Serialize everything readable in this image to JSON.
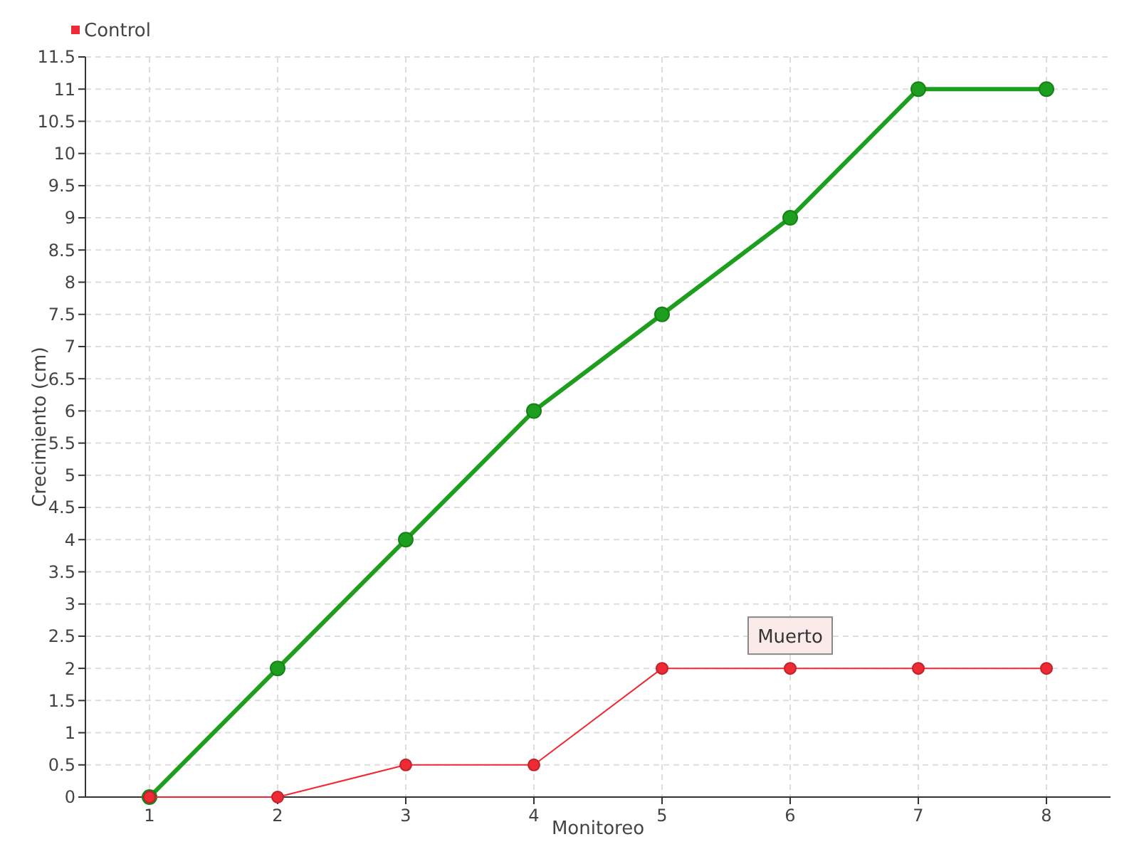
{
  "chart_data": {
    "type": "line",
    "xlabel": "Monitoreo",
    "ylabel": "Crecimiento (cm)",
    "x": [
      1,
      2,
      3,
      4,
      5,
      6,
      7,
      8
    ],
    "series": [
      {
        "color": "#1e9e1e",
        "values": [
          0,
          2,
          4,
          6,
          7.5,
          9,
          11,
          11
        ]
      },
      {
        "name": "Control",
        "color": "#ee2a35",
        "values": [
          0,
          0,
          0.5,
          0.5,
          2,
          2,
          2,
          2
        ]
      }
    ],
    "xlim": [
      0.5,
      8.5
    ],
    "xticks": [
      1,
      2,
      3,
      4,
      5,
      6,
      7,
      8
    ],
    "ylim": [
      0,
      11.5
    ],
    "yticks": [
      0,
      0.5,
      1,
      1.5,
      2,
      2.5,
      3,
      3.5,
      4,
      4.5,
      5,
      5.5,
      6,
      6.5,
      7,
      7.5,
      8,
      8.5,
      9,
      9.5,
      10,
      10.5,
      11,
      11.5
    ],
    "grid": true,
    "legend": "top left",
    "marker": "circle",
    "line_style": "solid",
    "annotations": [
      {
        "text": "Muerto",
        "x": 6,
        "y": 2
      }
    ]
  }
}
